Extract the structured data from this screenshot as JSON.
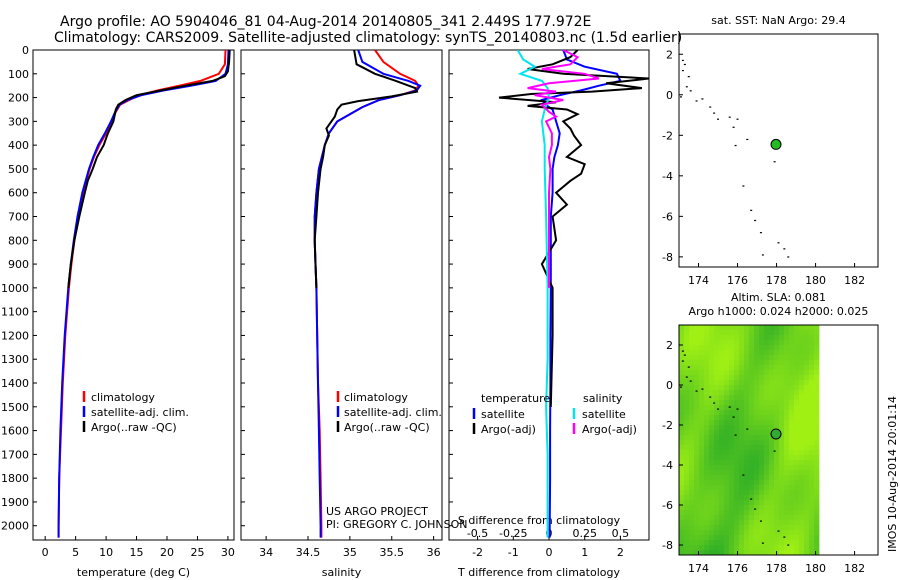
{
  "header": {
    "title_line1": "Argo profile: AO 5904046_81 04-Aug-2014 20140805_341 2.449S 177.972E",
    "title_line2": "Climatology: CARS2009. Satellite-adjusted climatology: synTS_20140803.nc (1.5d earlier)"
  },
  "side_stamp": "IMOS 10-Aug-2014 20:01:14",
  "colors": {
    "red": "#ff0000",
    "blue": "#0000ff",
    "black": "#000000",
    "cyan": "#00e5ee",
    "magenta": "#ff00ff",
    "green_marker": "#22bb22"
  },
  "chart_data": [
    {
      "id": "temperature",
      "type": "line",
      "xlabel": "temperature (deg C)",
      "ylabel": "",
      "xlim": [
        -2,
        31
      ],
      "ylim": [
        2060,
        0
      ],
      "x_ticks": [
        0,
        5,
        10,
        15,
        20,
        25,
        30
      ],
      "y_ticks": [
        0,
        100,
        200,
        300,
        400,
        500,
        600,
        700,
        800,
        900,
        1000,
        1100,
        1200,
        1300,
        1400,
        1500,
        1600,
        1700,
        1800,
        1900,
        2000
      ],
      "legend": [
        "climatology",
        "satellite-adj. clim.",
        "Argo(..raw -QC)"
      ],
      "legend_colors": [
        "red",
        "blue",
        "black"
      ],
      "series": [
        {
          "name": "climatology",
          "color": "red",
          "depth": [
            0,
            60,
            100,
            130,
            150,
            170,
            190,
            210,
            230,
            260,
            300,
            350,
            400,
            450,
            500,
            600,
            700,
            800,
            900,
            1000,
            1200,
            1400,
            1600,
            1800,
            2000,
            2050
          ],
          "values": [
            29.6,
            29.5,
            28.5,
            25.5,
            22.0,
            18.5,
            15.5,
            13.8,
            12.3,
            11.6,
            11.0,
            10.0,
            8.9,
            8.0,
            7.3,
            6.2,
            5.4,
            4.8,
            4.3,
            3.9,
            3.3,
            2.9,
            2.6,
            2.3,
            2.2,
            2.2
          ]
        },
        {
          "name": "satellite-adj. clim.",
          "color": "blue",
          "depth": [
            0,
            60,
            100,
            130,
            150,
            170,
            190,
            210,
            230,
            260,
            300,
            350,
            400,
            450,
            500,
            600,
            700,
            800,
            900,
            1000,
            1200,
            1400,
            1600,
            1800,
            2000,
            2050
          ],
          "values": [
            30.1,
            30.0,
            29.6,
            28.0,
            24.0,
            19.5,
            15.8,
            13.5,
            12.2,
            11.5,
            10.8,
            9.8,
            8.7,
            7.9,
            7.2,
            6.1,
            5.3,
            4.7,
            4.2,
            3.8,
            3.2,
            2.8,
            2.5,
            2.3,
            2.2,
            2.2
          ]
        },
        {
          "name": "Argo(..raw -QC)",
          "color": "black",
          "depth": [
            0,
            50,
            90,
            110,
            130,
            150,
            170,
            190,
            210,
            230,
            250,
            300,
            350,
            400,
            450,
            500,
            550,
            600,
            700,
            800,
            900,
            1000
          ],
          "values": [
            30.3,
            30.2,
            30.0,
            29.5,
            27.5,
            23.0,
            19.0,
            15.0,
            13.2,
            12.0,
            11.6,
            11.2,
            10.3,
            9.6,
            8.5,
            7.8,
            7.0,
            6.5,
            5.6,
            4.8,
            4.2,
            3.8
          ]
        }
      ]
    },
    {
      "id": "salinity",
      "type": "line",
      "xlabel": "salinity",
      "xlim": [
        33.7,
        36.1
      ],
      "ylim": [
        2060,
        0
      ],
      "x_ticks": [
        34,
        34.5,
        35,
        35.5,
        36
      ],
      "legend": [
        "climatology",
        "satellite-adj. clim.",
        "Argo(..raw -QC)"
      ],
      "legend_colors": [
        "red",
        "blue",
        "black"
      ],
      "annotation_line1": "US ARGO PROJECT",
      "annotation_line2": "PI: GREGORY C. JOHNSON",
      "series": [
        {
          "name": "climatology",
          "color": "red",
          "depth": [
            0,
            50,
            100,
            130,
            150,
            170,
            190,
            210,
            240,
            270,
            300,
            350,
            400,
            500,
            600,
            700,
            800,
            900,
            1000,
            1200,
            1400,
            1600,
            1800,
            2000,
            2050
          ],
          "values": [
            35.3,
            35.4,
            35.6,
            35.78,
            35.82,
            35.78,
            35.6,
            35.35,
            35.15,
            35.0,
            34.85,
            34.75,
            34.7,
            34.63,
            34.6,
            34.58,
            34.58,
            34.59,
            34.6,
            34.61,
            34.62,
            34.64,
            34.65,
            34.66,
            34.66
          ]
        },
        {
          "name": "satellite-adj. clim.",
          "color": "blue",
          "depth": [
            0,
            50,
            100,
            130,
            150,
            170,
            190,
            210,
            240,
            270,
            300,
            350,
            400,
            500,
            600,
            700,
            800,
            900,
            1000,
            1200,
            1400,
            1600,
            1800,
            2000,
            2050
          ],
          "values": [
            35.1,
            35.15,
            35.4,
            35.7,
            35.84,
            35.8,
            35.6,
            35.35,
            35.15,
            35.0,
            34.85,
            34.75,
            34.7,
            34.63,
            34.6,
            34.58,
            34.58,
            34.59,
            34.6,
            34.61,
            34.62,
            34.63,
            34.64,
            34.65,
            34.65
          ]
        },
        {
          "name": "Argo(..raw -QC)",
          "color": "black",
          "depth": [
            0,
            60,
            100,
            130,
            160,
            175,
            195,
            215,
            230,
            250,
            280,
            300,
            330,
            360,
            400,
            450,
            500,
            600,
            700,
            800,
            900,
            1000
          ],
          "values": [
            35.05,
            35.08,
            35.3,
            35.55,
            35.78,
            35.8,
            35.5,
            35.1,
            34.9,
            34.85,
            34.82,
            34.78,
            34.72,
            34.75,
            34.7,
            34.68,
            34.65,
            34.62,
            34.6,
            34.58,
            34.59,
            34.6
          ]
        }
      ]
    },
    {
      "id": "difference",
      "type": "line",
      "xlabel": "T difference from climatology",
      "xlabel_top": "S difference from climatology",
      "xlim": [
        -2.8,
        2.8
      ],
      "ylim": [
        2060,
        0
      ],
      "x_ticks": [
        -2,
        -1,
        0,
        1,
        2
      ],
      "x_ticks_top": [
        -0.5,
        -0.25,
        0,
        0.25,
        0.5
      ],
      "x_ticks_top_labels": [
        "-0.5",
        "-0.25",
        "0",
        "0.25",
        "0.5"
      ],
      "legend_temperature_title": "temperature",
      "legend_salinity_title": "salinity",
      "legend_temperature": [
        "satellite",
        "Argo(-adj)"
      ],
      "legend_salinity": [
        "satellite",
        "Argo(-adj)"
      ],
      "series": [
        {
          "name": "T satellite",
          "color": "blue",
          "depth": [
            0,
            40,
            70,
            100,
            130,
            150,
            170,
            190,
            210,
            230,
            250,
            300,
            350,
            400,
            450,
            500,
            600,
            700,
            800,
            900,
            1000,
            1200,
            1400,
            1600,
            1800,
            2000,
            2050
          ],
          "values": [
            0.4,
            0.5,
            1.0,
            1.9,
            2.0,
            1.4,
            0.9,
            0.3,
            -0.2,
            -0.1,
            0.1,
            0.2,
            0.3,
            0.25,
            0.15,
            0.1,
            0.1,
            0.05,
            0.05,
            0.05,
            0.05,
            0.04,
            0.04,
            0.03,
            0.03,
            0.02,
            0.02
          ]
        },
        {
          "name": "T Argo(-adj)",
          "color": "black",
          "depth": [
            0,
            30,
            60,
            80,
            100,
            120,
            140,
            160,
            175,
            185,
            200,
            220,
            235,
            250,
            270,
            300,
            330,
            360,
            400,
            450,
            480,
            520,
            550,
            600,
            650,
            700,
            800,
            900,
            1000,
            1200,
            1500
          ],
          "values": [
            0.8,
            0.6,
            0.1,
            -0.6,
            0.4,
            2.8,
            1.6,
            2.6,
            1.2,
            -0.5,
            -1.4,
            0.2,
            -0.6,
            0.5,
            0.8,
            0.4,
            0.6,
            0.7,
            0.9,
            0.5,
            1.0,
            0.9,
            0.6,
            0.2,
            0.5,
            0.1,
            0.2,
            -0.2,
            0.1,
            0.1,
            0.05
          ]
        },
        {
          "name": "S satellite",
          "color": "cyan",
          "depth": [
            0,
            40,
            70,
            100,
            130,
            160,
            200,
            250,
            300,
            400,
            500,
            700,
            1000,
            1300,
            1500,
            1700,
            2000,
            2050
          ],
          "values": [
            -0.22,
            -0.18,
            -0.1,
            -0.2,
            -0.05,
            -0.01,
            0.0,
            -0.03,
            -0.05,
            -0.03,
            -0.03,
            -0.02,
            -0.01,
            -0.01,
            -0.02,
            -0.01,
            -0.01,
            -0.01
          ]
        },
        {
          "name": "S Argo(-adj)",
          "color": "magenta",
          "depth": [
            0,
            30,
            60,
            80,
            100,
            120,
            140,
            160,
            175,
            190,
            210,
            230,
            260,
            280,
            300,
            350,
            400,
            450,
            500,
            600,
            700,
            800,
            1000
          ],
          "values": [
            0.1,
            0.2,
            0.15,
            -0.05,
            0.25,
            0.35,
            0.0,
            -0.15,
            0.05,
            -0.1,
            0.1,
            -0.05,
            0.0,
            0.05,
            -0.02,
            0.02,
            0.02,
            0.0,
            0.01,
            0.0,
            0.0,
            0.0,
            0.0
          ]
        }
      ]
    },
    {
      "id": "sst_map",
      "type": "scatter",
      "title": "sat. SST: NaN Argo: 29.4",
      "xlim": [
        173,
        183.2
      ],
      "ylim": [
        -8.5,
        3
      ],
      "x_ticks": [
        174,
        176,
        178,
        180,
        182
      ],
      "y_ticks": [
        -8,
        -6,
        -4,
        -2,
        0,
        2
      ],
      "argo_position": {
        "lon": 177.972,
        "lat": -2.449
      },
      "islands": [
        [
          173.2,
          1.7
        ],
        [
          173.3,
          1.5
        ],
        [
          173.2,
          1.2
        ],
        [
          173.5,
          0.9
        ],
        [
          173.6,
          0.2
        ],
        [
          173.1,
          -0.1
        ],
        [
          174.2,
          -0.2
        ],
        [
          174.6,
          -0.6
        ],
        [
          174.8,
          -0.9
        ],
        [
          175.0,
          -1.2
        ],
        [
          175.6,
          -1.1
        ],
        [
          176.0,
          -1.2
        ],
        [
          175.8,
          -1.6
        ],
        [
          176.5,
          -2.2
        ],
        [
          175.9,
          -2.5
        ],
        [
          177.9,
          -3.3
        ],
        [
          176.3,
          -4.5
        ],
        [
          176.7,
          -5.7
        ],
        [
          176.9,
          -6.2
        ],
        [
          177.2,
          -6.8
        ],
        [
          178.1,
          -7.3
        ],
        [
          178.4,
          -7.6
        ],
        [
          178.6,
          -8.0
        ],
        [
          177.3,
          -7.9
        ],
        [
          173.4,
          0.4
        ],
        [
          173.9,
          -0.3
        ]
      ]
    },
    {
      "id": "sla_map",
      "type": "heatmap",
      "title_line1": "Altim. SLA: 0.081",
      "title_line2": "Argo h1000: 0.024 h2000: 0.025",
      "xlim": [
        173,
        183.2
      ],
      "ylim": [
        -8.5,
        3
      ],
      "x_ticks": [
        174,
        176,
        178,
        180,
        182
      ],
      "y_ticks": [
        -8,
        -6,
        -4,
        -2,
        0,
        2
      ],
      "field_extent": {
        "lon": [
          173,
          180
        ],
        "lat": [
          -8.5,
          3
        ]
      },
      "argo_position": {
        "lon": 177.972,
        "lat": -2.449
      }
    }
  ]
}
